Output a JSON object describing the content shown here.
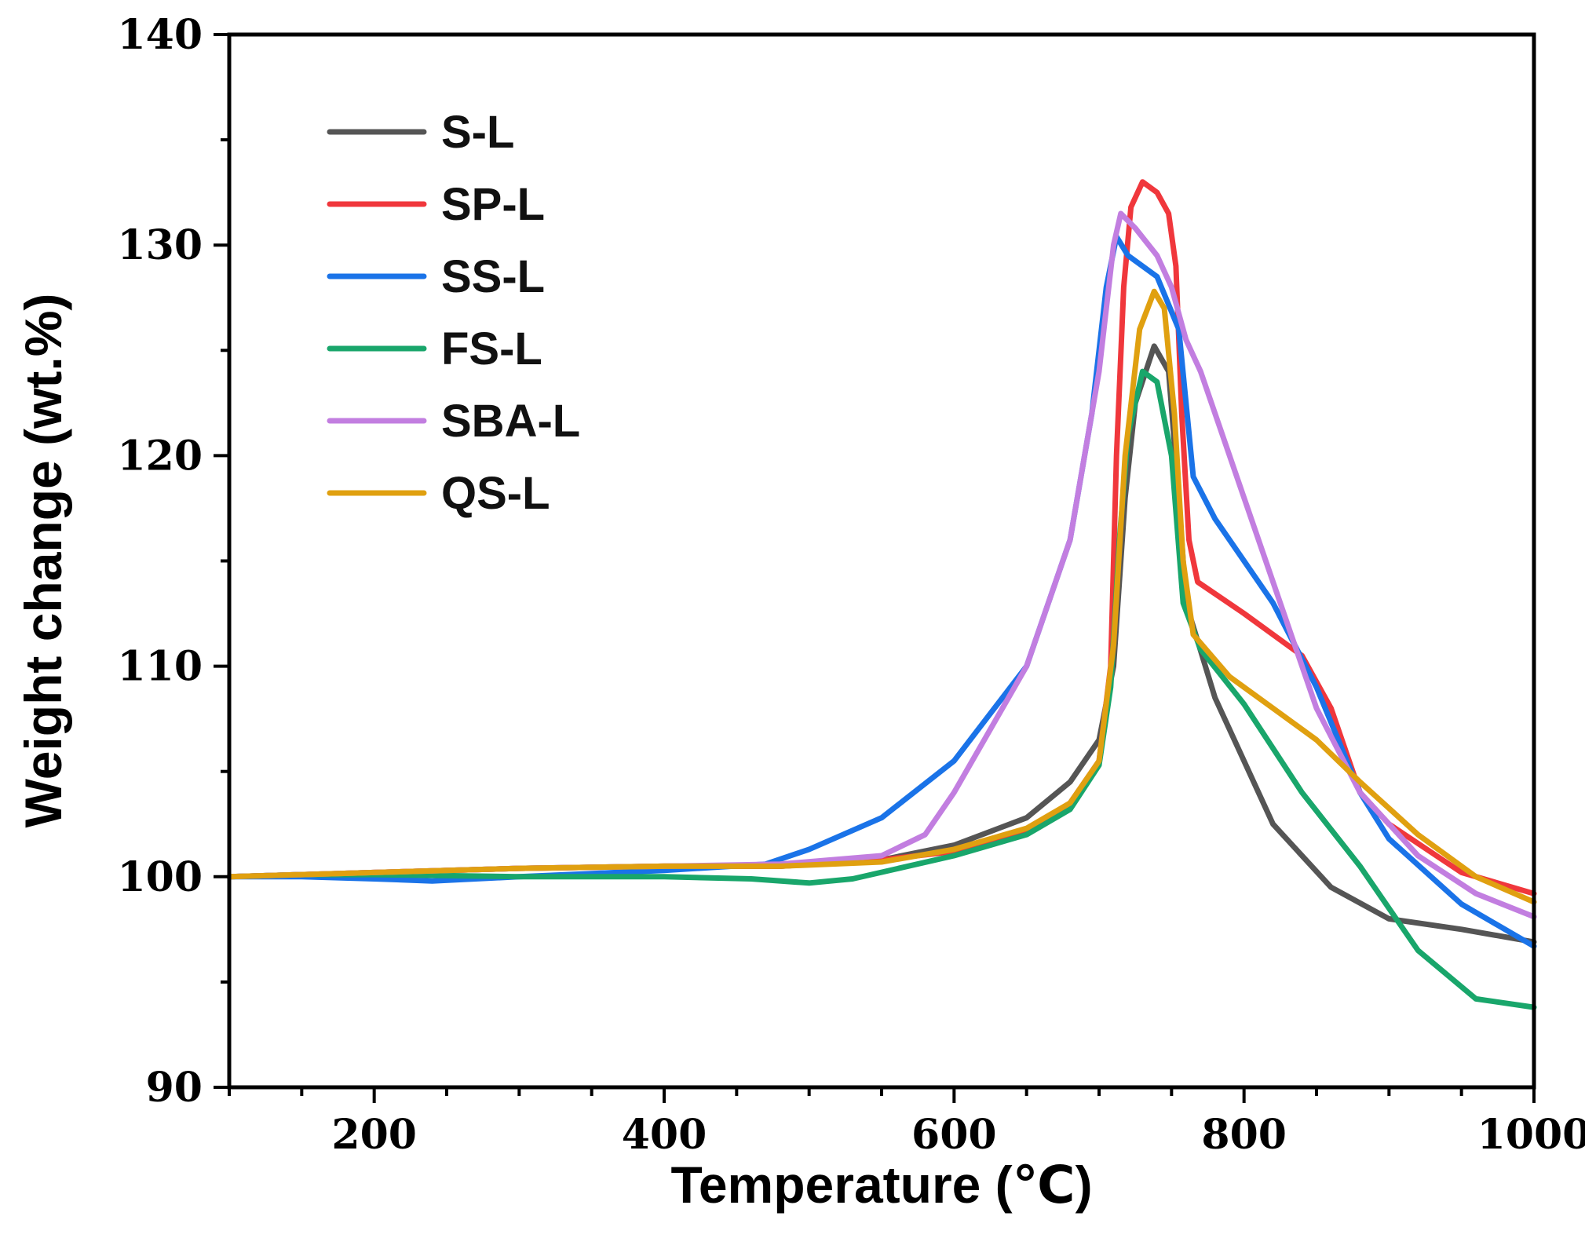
{
  "chart_data": {
    "type": "line",
    "xlabel": "Temperature (℃)",
    "ylabel": "Weight change (wt.%)",
    "xlim": [
      100,
      1000
    ],
    "ylim": [
      90,
      140
    ],
    "xticks": [
      200,
      400,
      600,
      800,
      1000
    ],
    "xtick_labels": [
      "200",
      "400",
      "600",
      "800",
      "1000"
    ],
    "yticks": [
      90,
      100,
      110,
      120,
      130,
      140
    ],
    "ytick_labels": [
      "90",
      "100",
      "110",
      "120",
      "130",
      "140"
    ],
    "grid": false,
    "legend_position": "top-left",
    "series": [
      {
        "name": "S-L",
        "color": "#555555",
        "points": [
          [
            100,
            100
          ],
          [
            150,
            100.1
          ],
          [
            200,
            100.2
          ],
          [
            300,
            100.4
          ],
          [
            400,
            100.5
          ],
          [
            480,
            100.5
          ],
          [
            550,
            100.8
          ],
          [
            600,
            101.5
          ],
          [
            650,
            102.8
          ],
          [
            680,
            104.5
          ],
          [
            700,
            106.5
          ],
          [
            710,
            110
          ],
          [
            718,
            118
          ],
          [
            725,
            122.5
          ],
          [
            738,
            125.2
          ],
          [
            748,
            124
          ],
          [
            755,
            118
          ],
          [
            760,
            113
          ],
          [
            780,
            108.5
          ],
          [
            820,
            102.5
          ],
          [
            860,
            99.5
          ],
          [
            900,
            98
          ],
          [
            950,
            97.5
          ],
          [
            1000,
            96.9
          ]
        ]
      },
      {
        "name": "SP-L",
        "color": "#f0373c",
        "points": [
          [
            100,
            100
          ],
          [
            150,
            100.1
          ],
          [
            200,
            100.2
          ],
          [
            300,
            100.4
          ],
          [
            400,
            100.5
          ],
          [
            480,
            100.5
          ],
          [
            550,
            100.8
          ],
          [
            600,
            101.2
          ],
          [
            650,
            102.2
          ],
          [
            680,
            103.5
          ],
          [
            700,
            105.5
          ],
          [
            708,
            110
          ],
          [
            712,
            120
          ],
          [
            717,
            128
          ],
          [
            722,
            131.8
          ],
          [
            730,
            133
          ],
          [
            740,
            132.5
          ],
          [
            748,
            131.5
          ],
          [
            753,
            129
          ],
          [
            757,
            122
          ],
          [
            762,
            116
          ],
          [
            768,
            114
          ],
          [
            800,
            112.5
          ],
          [
            840,
            110.5
          ],
          [
            860,
            108
          ],
          [
            880,
            104
          ],
          [
            900,
            102.5
          ],
          [
            950,
            100.2
          ],
          [
            1000,
            99.2
          ]
        ]
      },
      {
        "name": "SS-L",
        "color": "#1a73e8",
        "points": [
          [
            100,
            100
          ],
          [
            150,
            100
          ],
          [
            200,
            99.9
          ],
          [
            240,
            99.8
          ],
          [
            300,
            100
          ],
          [
            400,
            100.3
          ],
          [
            470,
            100.6
          ],
          [
            500,
            101.3
          ],
          [
            550,
            102.8
          ],
          [
            600,
            105.5
          ],
          [
            650,
            110
          ],
          [
            680,
            116
          ],
          [
            695,
            122
          ],
          [
            705,
            128
          ],
          [
            712,
            130.4
          ],
          [
            720,
            129.5
          ],
          [
            740,
            128.5
          ],
          [
            755,
            126
          ],
          [
            765,
            119
          ],
          [
            780,
            117
          ],
          [
            820,
            113
          ],
          [
            850,
            109
          ],
          [
            880,
            104
          ],
          [
            900,
            101.8
          ],
          [
            950,
            98.7
          ],
          [
            1000,
            96.7
          ]
        ]
      },
      {
        "name": "FS-L",
        "color": "#19a66b",
        "points": [
          [
            100,
            100
          ],
          [
            150,
            100.1
          ],
          [
            200,
            100.1
          ],
          [
            300,
            100
          ],
          [
            400,
            100
          ],
          [
            460,
            99.9
          ],
          [
            500,
            99.7
          ],
          [
            530,
            99.9
          ],
          [
            600,
            101
          ],
          [
            650,
            102
          ],
          [
            680,
            103.2
          ],
          [
            700,
            105.3
          ],
          [
            708,
            109
          ],
          [
            714,
            116
          ],
          [
            720,
            121
          ],
          [
            730,
            124
          ],
          [
            740,
            123.5
          ],
          [
            750,
            120
          ],
          [
            758,
            113
          ],
          [
            770,
            110.8
          ],
          [
            800,
            108.2
          ],
          [
            840,
            104
          ],
          [
            880,
            100.5
          ],
          [
            920,
            96.5
          ],
          [
            960,
            94.2
          ],
          [
            1000,
            93.8
          ]
        ]
      },
      {
        "name": "SBA-L",
        "color": "#c27ee0",
        "points": [
          [
            100,
            100
          ],
          [
            150,
            100.1
          ],
          [
            200,
            100.2
          ],
          [
            300,
            100.4
          ],
          [
            400,
            100.5
          ],
          [
            480,
            100.6
          ],
          [
            550,
            101
          ],
          [
            580,
            102
          ],
          [
            600,
            104
          ],
          [
            650,
            110
          ],
          [
            680,
            116
          ],
          [
            700,
            124
          ],
          [
            710,
            130
          ],
          [
            715,
            131.5
          ],
          [
            725,
            130.8
          ],
          [
            740,
            129.5
          ],
          [
            750,
            128
          ],
          [
            760,
            125.5
          ],
          [
            770,
            124
          ],
          [
            790,
            120
          ],
          [
            820,
            114
          ],
          [
            850,
            108
          ],
          [
            880,
            104
          ],
          [
            920,
            101
          ],
          [
            960,
            99.2
          ],
          [
            1000,
            98.1
          ]
        ]
      },
      {
        "name": "QS-L",
        "color": "#e0a010",
        "points": [
          [
            100,
            100
          ],
          [
            150,
            100.1
          ],
          [
            200,
            100.2
          ],
          [
            300,
            100.4
          ],
          [
            400,
            100.5
          ],
          [
            480,
            100.5
          ],
          [
            550,
            100.7
          ],
          [
            600,
            101.3
          ],
          [
            650,
            102.3
          ],
          [
            680,
            103.5
          ],
          [
            700,
            105.5
          ],
          [
            710,
            111
          ],
          [
            718,
            120
          ],
          [
            728,
            126
          ],
          [
            738,
            127.8
          ],
          [
            745,
            127
          ],
          [
            752,
            122
          ],
          [
            758,
            115
          ],
          [
            765,
            111.5
          ],
          [
            790,
            109.5
          ],
          [
            820,
            108
          ],
          [
            850,
            106.5
          ],
          [
            880,
            104.5
          ],
          [
            920,
            102
          ],
          [
            960,
            100
          ],
          [
            1000,
            98.8
          ]
        ]
      }
    ]
  }
}
